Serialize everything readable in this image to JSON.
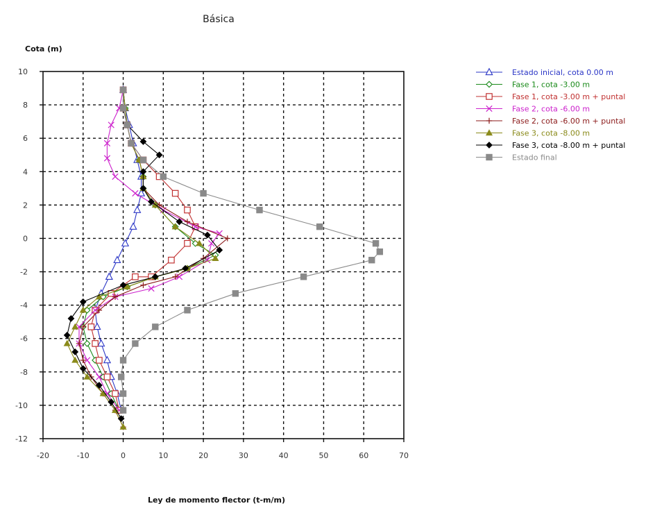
{
  "chart_data": {
    "type": "line",
    "title": "Básica",
    "ylabel": "Cota (m)",
    "xlabel": "Ley de momento flector (t-m/m)",
    "xlim": [
      -20,
      70
    ],
    "ylim": [
      -12,
      10
    ],
    "xticks": [
      -20,
      -10,
      0,
      10,
      20,
      30,
      40,
      50,
      60,
      70
    ],
    "yticks": [
      -12,
      -10,
      -8,
      -6,
      -4,
      -2,
      0,
      2,
      4,
      6,
      8,
      10
    ],
    "grid": true,
    "legend_position": "right",
    "series": [
      {
        "name": "Estado inicial, cota 0.00 m",
        "color": "#2a35c6",
        "marker": "triangle",
        "points": [
          [
            0,
            8.9
          ],
          [
            0.5,
            7.8
          ],
          [
            1.5,
            6.8
          ],
          [
            2.5,
            5.7
          ],
          [
            3.5,
            4.7
          ],
          [
            4.5,
            3.7
          ],
          [
            4.5,
            2.7
          ],
          [
            3.5,
            1.7
          ],
          [
            2.5,
            0.7
          ],
          [
            0.5,
            -0.3
          ],
          [
            -1.5,
            -1.3
          ],
          [
            -3.5,
            -2.3
          ],
          [
            -5.5,
            -3.3
          ],
          [
            -7,
            -4.3
          ],
          [
            -6.5,
            -5.3
          ],
          [
            -5.5,
            -6.3
          ],
          [
            -4,
            -7.3
          ],
          [
            -3,
            -8.3
          ],
          [
            -1.5,
            -9.3
          ],
          [
            -0.5,
            -10.3
          ]
        ]
      },
      {
        "name": "Fase 1, cota -3.00 m",
        "color": "#1a8a1a",
        "marker": "diamond-open",
        "points": [
          [
            0,
            8.9
          ],
          [
            0.5,
            7.8
          ],
          [
            1,
            6.8
          ],
          [
            2,
            5.7
          ],
          [
            4,
            4.7
          ],
          [
            5,
            3.7
          ],
          [
            5,
            3
          ],
          [
            8,
            2
          ],
          [
            13,
            0.7
          ],
          [
            18,
            -0.3
          ],
          [
            23,
            -1
          ],
          [
            16,
            -1.8
          ],
          [
            8,
            -2.3
          ],
          [
            1,
            -2.9
          ],
          [
            -5,
            -3.5
          ],
          [
            -9,
            -4.3
          ],
          [
            -10,
            -5.3
          ],
          [
            -9,
            -6.3
          ],
          [
            -7,
            -7.3
          ],
          [
            -5,
            -8.3
          ],
          [
            -3,
            -9.3
          ],
          [
            -1,
            -10.3
          ]
        ]
      },
      {
        "name": "Fase 1, cota -3.00 m + puntal",
        "color": "#c03030",
        "marker": "square-open",
        "points": [
          [
            0,
            8.9
          ],
          [
            0,
            7.8
          ],
          [
            1,
            6.8
          ],
          [
            2,
            5.7
          ],
          [
            5,
            4.7
          ],
          [
            9,
            3.7
          ],
          [
            13,
            2.7
          ],
          [
            16,
            1.7
          ],
          [
            18,
            0.7
          ],
          [
            16,
            -0.3
          ],
          [
            12,
            -1.3
          ],
          [
            7,
            -2.3
          ],
          [
            3,
            -2.3
          ],
          [
            -3,
            -3.3
          ],
          [
            -7,
            -4.3
          ],
          [
            -8,
            -5.3
          ],
          [
            -7,
            -6.3
          ],
          [
            -6,
            -7.3
          ],
          [
            -4,
            -8.3
          ],
          [
            -2,
            -9.3
          ],
          [
            -1,
            -10.3
          ]
        ]
      },
      {
        "name": "Fase 2, cota -6.00 m",
        "color": "#cc22cc",
        "marker": "x",
        "points": [
          [
            0,
            8.9
          ],
          [
            -1,
            7.8
          ],
          [
            -3,
            6.8
          ],
          [
            -4,
            5.7
          ],
          [
            -4,
            4.8
          ],
          [
            -2,
            3.7
          ],
          [
            3,
            2.7
          ],
          [
            10,
            1.7
          ],
          [
            18,
            0.7
          ],
          [
            24,
            0.3
          ],
          [
            22,
            -0.3
          ],
          [
            21,
            -1.3
          ],
          [
            14,
            -2.3
          ],
          [
            7,
            -3
          ],
          [
            -2,
            -3.5
          ],
          [
            -7,
            -4.3
          ],
          [
            -11,
            -5.3
          ],
          [
            -11,
            -6.3
          ],
          [
            -9,
            -7.3
          ],
          [
            -6,
            -8.3
          ],
          [
            -4,
            -9.3
          ],
          [
            -1,
            -10.3
          ]
        ]
      },
      {
        "name": "Fase 2, cota -6.00 m + puntal",
        "color": "#8b1a1a",
        "marker": "plus",
        "points": [
          [
            0,
            8.9
          ],
          [
            0,
            7.8
          ],
          [
            1,
            6.8
          ],
          [
            2,
            5.7
          ],
          [
            4,
            4.7
          ],
          [
            5,
            3.7
          ],
          [
            5,
            3
          ],
          [
            9,
            2
          ],
          [
            16,
            1
          ],
          [
            26,
            0
          ],
          [
            20,
            -1.2
          ],
          [
            13,
            -2.3
          ],
          [
            5,
            -2.8
          ],
          [
            -2,
            -3.5
          ],
          [
            -6,
            -4.3
          ],
          [
            -10,
            -5.3
          ],
          [
            -11,
            -6.3
          ],
          [
            -10,
            -7.3
          ],
          [
            -8,
            -8.3
          ],
          [
            -5,
            -9.3
          ],
          [
            -2,
            -10.3
          ],
          [
            0,
            -11.3
          ]
        ]
      },
      {
        "name": "Fase 3, cota -8.00 m",
        "color": "#8a8a1a",
        "marker": "triangle-filled",
        "points": [
          [
            0,
            8.9
          ],
          [
            0.5,
            7.8
          ],
          [
            1,
            6.8
          ],
          [
            2,
            5.7
          ],
          [
            4,
            4.7
          ],
          [
            5,
            3.7
          ],
          [
            5,
            3
          ],
          [
            8,
            2
          ],
          [
            13,
            0.7
          ],
          [
            19,
            -0.3
          ],
          [
            23,
            -1.2
          ],
          [
            16,
            -1.8
          ],
          [
            8,
            -2.3
          ],
          [
            1,
            -2.9
          ],
          [
            -6,
            -3.5
          ],
          [
            -10,
            -4.3
          ],
          [
            -12,
            -5.3
          ],
          [
            -14,
            -6.3
          ],
          [
            -12,
            -7.3
          ],
          [
            -9,
            -8.3
          ],
          [
            -5,
            -9.3
          ],
          [
            -2,
            -10.3
          ],
          [
            0,
            -11.3
          ]
        ]
      },
      {
        "name": "Fase 3, cota -8.00 m + puntal",
        "color": "#000000",
        "marker": "diamond-filled",
        "points": [
          [
            0,
            8.9
          ],
          [
            0,
            7.8
          ],
          [
            1,
            6.8
          ],
          [
            5,
            5.8
          ],
          [
            9,
            5
          ],
          [
            5,
            4
          ],
          [
            5,
            3
          ],
          [
            7,
            2.2
          ],
          [
            14,
            1
          ],
          [
            21,
            0.2
          ],
          [
            24,
            -0.7
          ],
          [
            15.5,
            -1.8
          ],
          [
            8,
            -2.3
          ],
          [
            0,
            -2.8
          ],
          [
            -10,
            -3.8
          ],
          [
            -13,
            -4.8
          ],
          [
            -14,
            -5.8
          ],
          [
            -12,
            -6.8
          ],
          [
            -10,
            -7.8
          ],
          [
            -6,
            -8.8
          ],
          [
            -3,
            -9.8
          ],
          [
            -0.5,
            -10.8
          ]
        ]
      },
      {
        "name": "Estado final",
        "color": "#8a8a8a",
        "marker": "square-filled",
        "points": [
          [
            0,
            8.9
          ],
          [
            0,
            7.8
          ],
          [
            1,
            6.8
          ],
          [
            2,
            5.7
          ],
          [
            5,
            4.7
          ],
          [
            10,
            3.7
          ],
          [
            20,
            2.7
          ],
          [
            34,
            1.7
          ],
          [
            49,
            0.7
          ],
          [
            63,
            -0.3
          ],
          [
            64,
            -0.8
          ],
          [
            62,
            -1.3
          ],
          [
            45,
            -2.3
          ],
          [
            28,
            -3.3
          ],
          [
            16,
            -4.3
          ],
          [
            8,
            -5.3
          ],
          [
            3,
            -6.3
          ],
          [
            0,
            -7.3
          ],
          [
            -0.5,
            -8.3
          ],
          [
            0,
            -9.3
          ],
          [
            0,
            -10.3
          ]
        ]
      }
    ]
  }
}
